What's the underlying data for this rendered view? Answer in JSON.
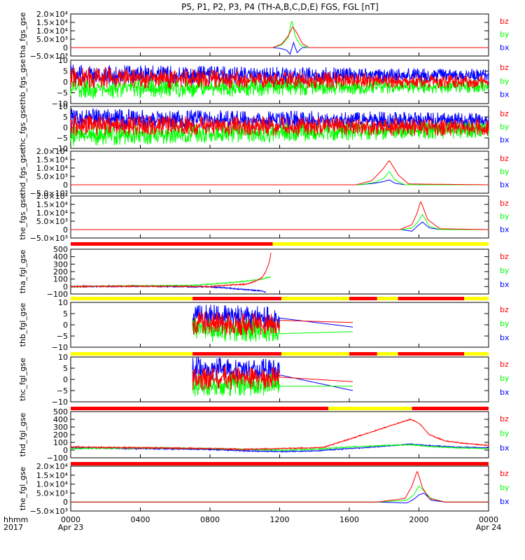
{
  "title": "P5, P1, P2, P3, P4 (TH-A,B,C,D,E) FGS, FGL [nT]",
  "colors": {
    "bx": "#0000ff",
    "by": "#00ff00",
    "bz": "#ff0000",
    "bar_red": "#ff0000",
    "bar_yellow": "#ffff00",
    "frame": "#000000"
  },
  "x_axis": {
    "label_line1": "hhmm",
    "label_line2": "2017",
    "ticks": [
      "0000",
      "0400",
      "0800",
      "1200",
      "1600",
      "2000",
      "0000"
    ],
    "tick_hours": [
      0,
      4,
      8,
      12,
      16,
      20,
      24
    ],
    "date_start": "Apr 23",
    "date_end": "Apr 24"
  },
  "chart_data": [
    {
      "type": "line",
      "ylabel": "tha_fgs_gse",
      "ylim": [
        -5000,
        20000
      ],
      "yticks": [
        "2.0×10⁴",
        "1.5×10⁴",
        "1.0×10⁴",
        "5.0×10³",
        "0",
        "−5.0×10³"
      ],
      "ytick_values": [
        20000,
        15000,
        10000,
        5000,
        0,
        -5000
      ],
      "legend": [
        "bz",
        "by",
        "bx"
      ],
      "series": [
        {
          "name": "bx",
          "x": [
            0,
            11.6,
            12.0,
            12.4,
            12.6,
            12.8,
            13.0,
            13.3,
            24
          ],
          "y": [
            0,
            0,
            -400,
            -1500,
            -4000,
            3000,
            -3000,
            0,
            0
          ]
        },
        {
          "name": "by",
          "x": [
            0,
            11.6,
            12.1,
            12.5,
            12.7,
            12.9,
            13.2,
            13.6,
            24
          ],
          "y": [
            0,
            0,
            1500,
            6000,
            16500,
            6500,
            1500,
            0,
            0
          ]
        },
        {
          "name": "bz",
          "x": [
            0,
            11.6,
            12.1,
            12.5,
            12.75,
            13.0,
            13.3,
            13.7,
            24
          ],
          "y": [
            0,
            0,
            2000,
            7000,
            12500,
            8500,
            2500,
            0,
            0
          ]
        }
      ]
    },
    {
      "type": "line",
      "ylabel": "thb_fgs_gse",
      "ylim": [
        -10,
        10
      ],
      "yticks": [
        "10",
        "5",
        "0",
        "−5",
        "−10"
      ],
      "ytick_values": [
        10,
        5,
        0,
        -5,
        -10
      ],
      "legend": [
        "bz",
        "by",
        "bx"
      ],
      "series": [
        {
          "name": "bx",
          "x": [
            0,
            24
          ],
          "y": [
            3,
            3
          ],
          "noise": [
            5,
            3
          ]
        },
        {
          "name": "by",
          "x": [
            0,
            24
          ],
          "y": [
            -3,
            -2
          ],
          "noise": [
            5,
            3
          ]
        },
        {
          "name": "bz",
          "x": [
            0,
            24
          ],
          "y": [
            2,
            0
          ],
          "noise": [
            5,
            3
          ]
        }
      ]
    },
    {
      "type": "line",
      "ylabel": "thc_fgs_gse",
      "ylim": [
        -10,
        10
      ],
      "yticks": [
        "10",
        "5",
        "0",
        "−5",
        "−10"
      ],
      "ytick_values": [
        10,
        5,
        0,
        -5,
        -10
      ],
      "legend": [
        "bz",
        "by",
        "bx"
      ],
      "series": [
        {
          "name": "bx",
          "x": [
            0,
            24
          ],
          "y": [
            4,
            3
          ],
          "noise": [
            5,
            4
          ]
        },
        {
          "name": "by",
          "x": [
            0,
            24
          ],
          "y": [
            -4,
            -1
          ],
          "noise": [
            5,
            4
          ]
        },
        {
          "name": "bz",
          "x": [
            0,
            24
          ],
          "y": [
            1,
            0
          ],
          "noise": [
            5,
            4
          ]
        }
      ]
    },
    {
      "type": "line",
      "ylabel": "thd_fgs_gse",
      "ylim": [
        -5000,
        20000
      ],
      "yticks": [
        "2.0×10⁴",
        "1.5×10⁴",
        "1.0×10⁴",
        "5.0×10³",
        "0",
        "−5.0×10³"
      ],
      "ytick_values": [
        20000,
        15000,
        10000,
        5000,
        0,
        -5000
      ],
      "legend": [
        "bz",
        "by",
        "bx"
      ],
      "series": [
        {
          "name": "bx",
          "x": [
            0,
            16.6,
            17.5,
            18.0,
            18.3,
            18.6,
            19.2,
            24
          ],
          "y": [
            0,
            0,
            1000,
            2000,
            3000,
            1000,
            0,
            0
          ]
        },
        {
          "name": "by",
          "x": [
            0,
            16.6,
            17.5,
            18.0,
            18.3,
            18.6,
            19.2,
            24
          ],
          "y": [
            0,
            0,
            1500,
            4000,
            8000,
            3000,
            0,
            0
          ]
        },
        {
          "name": "bz",
          "x": [
            0,
            16.4,
            17.3,
            17.9,
            18.3,
            18.8,
            19.4,
            24
          ],
          "y": [
            0,
            0,
            2500,
            9000,
            14500,
            6000,
            500,
            0
          ]
        }
      ]
    },
    {
      "type": "line",
      "ylabel": "the_fgs_gse",
      "ylim": [
        -5000,
        20000
      ],
      "yticks": [
        "2.0×10⁴",
        "1.5×10⁴",
        "1.0×10⁴",
        "5.0×10³",
        "0",
        "−5.0×10³"
      ],
      "ytick_values": [
        20000,
        15000,
        10000,
        5000,
        0,
        -5000
      ],
      "legend": [
        "bz",
        "by",
        "bx"
      ],
      "series": [
        {
          "name": "bx",
          "x": [
            0,
            19.0,
            19.6,
            19.9,
            20.2,
            20.6,
            21.2,
            24
          ],
          "y": [
            0,
            0,
            -1000,
            2000,
            4500,
            1000,
            0,
            0
          ]
        },
        {
          "name": "by",
          "x": [
            0,
            19.0,
            19.6,
            19.9,
            20.2,
            20.6,
            21.2,
            24
          ],
          "y": [
            0,
            0,
            1000,
            4000,
            9000,
            2000,
            0,
            0
          ]
        },
        {
          "name": "bz",
          "x": [
            0,
            18.9,
            19.6,
            19.9,
            20.1,
            20.5,
            21.2,
            24
          ],
          "y": [
            0,
            0,
            3000,
            10000,
            17000,
            6000,
            500,
            0
          ]
        }
      ]
    },
    {
      "type": "line",
      "ylabel": "tha_fgl_gse",
      "ylim": [
        -100,
        500
      ],
      "yticks": [
        "500",
        "400",
        "300",
        "200",
        "100",
        "0",
        "−100"
      ],
      "ytick_values": [
        500,
        400,
        300,
        200,
        100,
        0,
        -100
      ],
      "legend": [
        "bz",
        "by",
        "bx"
      ],
      "status_bar": [
        {
          "from": 0,
          "to": 11.6,
          "color": "red"
        },
        {
          "from": 11.6,
          "to": 24,
          "color": "yellow"
        }
      ],
      "series": [
        {
          "name": "bx",
          "x": [
            0,
            4,
            8,
            9,
            10,
            11,
            11.2
          ],
          "y": [
            0,
            5,
            -5,
            -20,
            -40,
            -60,
            -80
          ],
          "noise": [
            10,
            8
          ]
        },
        {
          "name": "by",
          "x": [
            0,
            4,
            7,
            8,
            9,
            10,
            11,
            11.5
          ],
          "y": [
            0,
            10,
            15,
            30,
            50,
            70,
            100,
            130
          ],
          "noise": [
            8,
            6
          ]
        },
        {
          "name": "bz",
          "x": [
            0,
            4,
            8,
            9,
            10,
            10.5,
            11,
            11.2,
            11.4,
            11.5
          ],
          "y": [
            0,
            5,
            0,
            20,
            30,
            60,
            120,
            200,
            320,
            450
          ],
          "noise": [
            10,
            6
          ]
        }
      ]
    },
    {
      "type": "line",
      "ylabel": "thb_fgl_gse",
      "ylim": [
        -10,
        10
      ],
      "yticks": [
        "10",
        "5",
        "0",
        "−5",
        "−10"
      ],
      "ytick_values": [
        10,
        5,
        0,
        -5,
        -10
      ],
      "legend": [
        "bz",
        "by",
        "bx"
      ],
      "status_bar": [
        {
          "from": 0,
          "to": 7,
          "color": "yellow"
        },
        {
          "from": 7,
          "to": 12.1,
          "color": "red"
        },
        {
          "from": 12.1,
          "to": 16,
          "color": "yellow"
        },
        {
          "from": 16,
          "to": 17.6,
          "color": "red"
        },
        {
          "from": 17.6,
          "to": 18.8,
          "color": "yellow"
        },
        {
          "from": 18.8,
          "to": 22.6,
          "color": "red"
        },
        {
          "from": 22.6,
          "to": 24,
          "color": "yellow"
        }
      ],
      "series": [
        {
          "name": "bx",
          "x": [
            7,
            12
          ],
          "y": [
            4,
            3
          ],
          "noise": [
            6,
            4
          ],
          "gap_line": [
            [
              12,
              3
            ],
            [
              16.2,
              -1
            ]
          ]
        },
        {
          "name": "by",
          "x": [
            7,
            12
          ],
          "y": [
            -2,
            -3
          ],
          "noise": [
            6,
            4
          ],
          "gap_line": [
            [
              12,
              -4
            ],
            [
              16.2,
              -3
            ]
          ]
        },
        {
          "name": "bz",
          "x": [
            7,
            12
          ],
          "y": [
            1,
            0
          ],
          "noise": [
            6,
            4
          ],
          "gap_line": [
            [
              12,
              2
            ],
            [
              16.2,
              1
            ]
          ]
        }
      ]
    },
    {
      "type": "line",
      "ylabel": "thc_fgl_gse",
      "ylim": [
        -10,
        10
      ],
      "yticks": [
        "10",
        "5",
        "0",
        "−5",
        "−10"
      ],
      "ytick_values": [
        10,
        5,
        0,
        -5,
        -10
      ],
      "legend": [
        "bz",
        "by",
        "bx"
      ],
      "status_bar": [
        {
          "from": 0,
          "to": 7,
          "color": "yellow"
        },
        {
          "from": 7,
          "to": 12.1,
          "color": "red"
        },
        {
          "from": 12.1,
          "to": 16,
          "color": "yellow"
        },
        {
          "from": 16,
          "to": 17.6,
          "color": "red"
        },
        {
          "from": 17.6,
          "to": 18.8,
          "color": "yellow"
        },
        {
          "from": 18.8,
          "to": 22.6,
          "color": "red"
        },
        {
          "from": 22.6,
          "to": 24,
          "color": "yellow"
        }
      ],
      "series": [
        {
          "name": "bx",
          "x": [
            7,
            12
          ],
          "y": [
            5,
            4
          ],
          "noise": [
            6,
            4
          ],
          "gap_line": [
            [
              12,
              2
            ],
            [
              16.2,
              -5
            ]
          ]
        },
        {
          "name": "by",
          "x": [
            7,
            12
          ],
          "y": [
            -3,
            -2
          ],
          "noise": [
            6,
            4
          ],
          "gap_line": [
            [
              12,
              -3
            ],
            [
              16.2,
              -3
            ]
          ]
        },
        {
          "name": "bz",
          "x": [
            7,
            12
          ],
          "y": [
            0,
            1
          ],
          "noise": [
            6,
            4
          ],
          "gap_line": [
            [
              12,
              1
            ],
            [
              16.2,
              -1
            ]
          ]
        }
      ]
    },
    {
      "type": "line",
      "ylabel": "thd_fgl_gse",
      "ylim": [
        -100,
        500
      ],
      "yticks": [
        "500",
        "400",
        "300",
        "200",
        "100",
        "0",
        "−100"
      ],
      "ytick_values": [
        500,
        400,
        300,
        200,
        100,
        0,
        -100
      ],
      "legend": [
        "bz",
        "by",
        "bx"
      ],
      "status_bar": [
        {
          "from": 0,
          "to": 14.8,
          "color": "red"
        },
        {
          "from": 14.8,
          "to": 19.6,
          "color": "yellow"
        },
        {
          "from": 19.6,
          "to": 24,
          "color": "red"
        }
      ],
      "series": [
        {
          "name": "bx",
          "x": [
            0,
            4,
            8,
            10,
            12,
            14,
            16,
            18,
            19.5,
            20.5,
            22,
            24
          ],
          "y": [
            30,
            20,
            10,
            -10,
            -20,
            -10,
            20,
            50,
            80,
            60,
            40,
            30
          ],
          "noise": [
            10,
            6
          ]
        },
        {
          "name": "by",
          "x": [
            0,
            4,
            8,
            10,
            12,
            14,
            16,
            18,
            19.5,
            20.5,
            22,
            24
          ],
          "y": [
            20,
            30,
            20,
            10,
            0,
            10,
            40,
            60,
            70,
            50,
            30,
            20
          ],
          "noise": [
            10,
            6
          ]
        },
        {
          "name": "bz",
          "x": [
            0,
            4,
            8,
            10,
            12,
            14,
            14.6,
            19.5,
            20.0,
            20.6,
            21.5,
            22.5,
            24
          ],
          "y": [
            40,
            30,
            20,
            10,
            20,
            30,
            40,
            400,
            350,
            200,
            120,
            90,
            60
          ],
          "noise": [
            10,
            6
          ]
        }
      ]
    },
    {
      "type": "line",
      "ylabel": "the_fgl_gse",
      "ylim": [
        -5000,
        20000
      ],
      "yticks": [
        "2.0×10⁴",
        "1.5×10⁴",
        "1.0×10⁴",
        "5.0×10³",
        "0",
        "−5.0×10³"
      ],
      "ytick_values": [
        20000,
        15000,
        10000,
        5000,
        0,
        -5000
      ],
      "legend": [
        "bz",
        "by",
        "bx"
      ],
      "status_bar": [
        {
          "from": 0,
          "to": 24,
          "color": "red"
        }
      ],
      "series": [
        {
          "name": "bx",
          "x": [
            0,
            17.6,
            19.3,
            19.7,
            20.0,
            20.3,
            20.7,
            21.5,
            24
          ],
          "y": [
            0,
            0,
            -500,
            1500,
            4000,
            5000,
            1000,
            0,
            0
          ]
        },
        {
          "name": "by",
          "x": [
            0,
            17.6,
            19.3,
            19.7,
            20.0,
            20.3,
            20.7,
            21.5,
            24
          ],
          "y": [
            0,
            0,
            1000,
            4000,
            9000,
            6000,
            2000,
            0,
            0
          ]
        },
        {
          "name": "bz",
          "x": [
            0,
            17.6,
            19.2,
            19.6,
            19.9,
            20.2,
            20.6,
            21.5,
            24
          ],
          "y": [
            0,
            0,
            2000,
            9000,
            17500,
            8000,
            2000,
            0,
            0
          ]
        }
      ]
    }
  ]
}
